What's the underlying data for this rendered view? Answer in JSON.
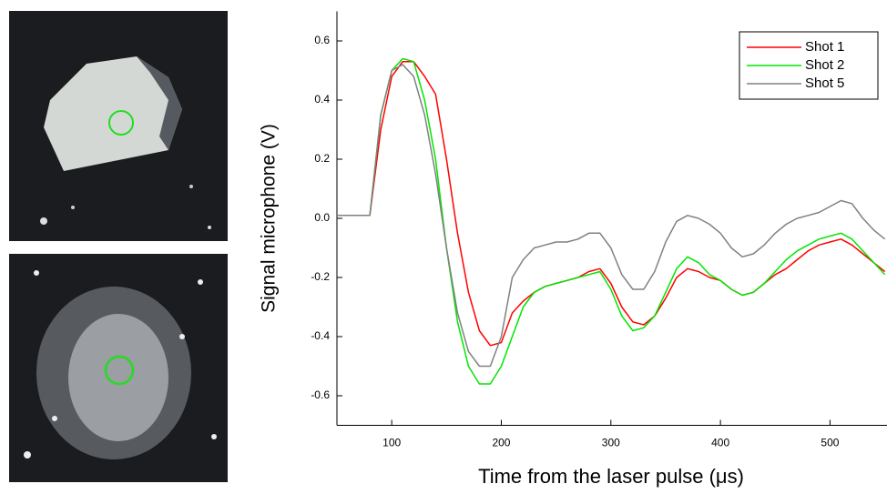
{
  "chart_data": {
    "type": "line",
    "xlabel": "Time from the laser pulse (μs)",
    "ylabel": "Signal microphone (V)",
    "x": [
      50,
      60,
      70,
      80,
      90,
      100,
      110,
      120,
      130,
      140,
      150,
      160,
      170,
      180,
      190,
      200,
      210,
      220,
      230,
      240,
      250,
      260,
      270,
      280,
      290,
      300,
      310,
      320,
      330,
      340,
      350,
      360,
      370,
      380,
      390,
      400,
      410,
      420,
      430,
      440,
      450,
      460,
      470,
      480,
      490,
      500,
      510,
      520,
      530,
      540,
      550
    ],
    "series": [
      {
        "name": "Shot 1",
        "color": "#ff0000",
        "values": [
          0.01,
          0.01,
          0.01,
          0.01,
          0.3,
          0.48,
          0.53,
          0.53,
          0.48,
          0.42,
          0.2,
          -0.05,
          -0.25,
          -0.38,
          -0.43,
          -0.42,
          -0.32,
          -0.28,
          -0.25,
          -0.23,
          -0.22,
          -0.21,
          -0.2,
          -0.18,
          -0.17,
          -0.22,
          -0.3,
          -0.35,
          -0.36,
          -0.33,
          -0.27,
          -0.2,
          -0.17,
          -0.18,
          -0.2,
          -0.21,
          -0.24,
          -0.26,
          -0.25,
          -0.22,
          -0.19,
          -0.17,
          -0.14,
          -0.11,
          -0.09,
          -0.08,
          -0.07,
          -0.09,
          -0.12,
          -0.15,
          -0.18
        ]
      },
      {
        "name": "Shot 2",
        "color": "#00e600",
        "values": [
          0.01,
          0.01,
          0.01,
          0.01,
          0.35,
          0.5,
          0.54,
          0.53,
          0.4,
          0.2,
          -0.1,
          -0.35,
          -0.5,
          -0.56,
          -0.56,
          -0.5,
          -0.4,
          -0.3,
          -0.25,
          -0.23,
          -0.22,
          -0.21,
          -0.2,
          -0.19,
          -0.18,
          -0.24,
          -0.33,
          -0.38,
          -0.37,
          -0.33,
          -0.25,
          -0.17,
          -0.13,
          -0.15,
          -0.19,
          -0.21,
          -0.24,
          -0.26,
          -0.25,
          -0.22,
          -0.18,
          -0.14,
          -0.11,
          -0.09,
          -0.07,
          -0.06,
          -0.05,
          -0.07,
          -0.11,
          -0.15,
          -0.19
        ]
      },
      {
        "name": "Shot 5",
        "color": "#808080",
        "values": [
          0.01,
          0.01,
          0.01,
          0.01,
          0.35,
          0.5,
          0.52,
          0.48,
          0.35,
          0.15,
          -0.1,
          -0.32,
          -0.45,
          -0.5,
          -0.5,
          -0.4,
          -0.2,
          -0.14,
          -0.1,
          -0.09,
          -0.08,
          -0.08,
          -0.07,
          -0.05,
          -0.05,
          -0.1,
          -0.19,
          -0.24,
          -0.24,
          -0.18,
          -0.08,
          -0.01,
          0.01,
          0.0,
          -0.02,
          -0.05,
          -0.1,
          -0.13,
          -0.12,
          -0.09,
          -0.05,
          -0.02,
          0.0,
          0.01,
          0.02,
          0.04,
          0.06,
          0.05,
          0.0,
          -0.04,
          -0.07
        ]
      }
    ],
    "xlim": [
      50,
      552
    ],
    "ylim": [
      -0.7,
      0.7
    ],
    "xticks": [
      100,
      200,
      300,
      400,
      500
    ],
    "yticks": [
      -0.6,
      -0.4,
      -0.2,
      {
        "value": 0,
        "label": "0.0"
      },
      0.2,
      0.4,
      0.6
    ],
    "legend": "upper right"
  }
}
